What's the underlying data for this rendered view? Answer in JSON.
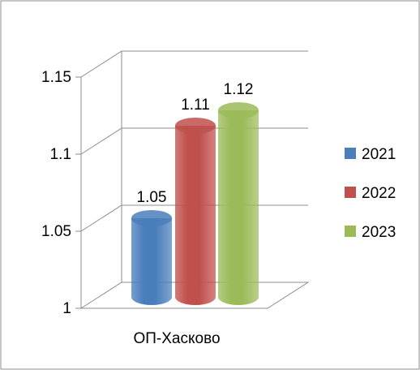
{
  "chart_data": {
    "type": "bar",
    "title": "",
    "xlabel": "",
    "ylabel": "",
    "categories": [
      "ОП-Хасково"
    ],
    "series": [
      {
        "name": "2021",
        "values": [
          1.05
        ],
        "color": "#4a7ebb",
        "label": "1.05"
      },
      {
        "name": "2022",
        "values": [
          1.11
        ],
        "color": "#c0504d",
        "label": "1.11"
      },
      {
        "name": "2023",
        "values": [
          1.12
        ],
        "color": "#9bbb59",
        "label": "1.12"
      }
    ],
    "ylim": [
      1,
      1.15
    ],
    "yticks": [
      "1",
      "1.05",
      "1.1",
      "1.15"
    ],
    "grid": true,
    "legend_position": "right",
    "style": "3d-cylinder"
  }
}
